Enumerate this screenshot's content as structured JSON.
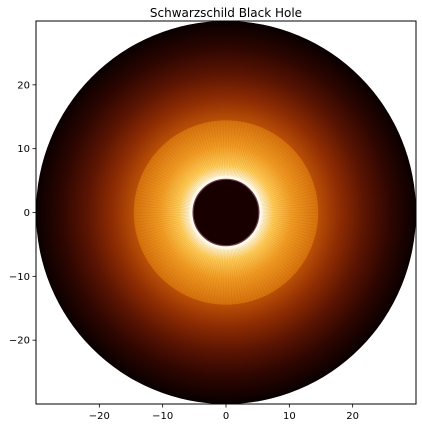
{
  "chart_data": {
    "type": "heatmap",
    "title": "Schwarzschild Black Hole",
    "xlabel": "",
    "ylabel": "",
    "xlim": [
      -30,
      30
    ],
    "ylim": [
      -30,
      30
    ],
    "xticks": [
      -20,
      -10,
      0,
      10,
      20
    ],
    "yticks": [
      -20,
      -10,
      0,
      10,
      20
    ],
    "xtick_labels": [
      "−20",
      "−10",
      "0",
      "10",
      "20"
    ],
    "ytick_labels": [
      "−20",
      "−10",
      "0",
      "10",
      "20"
    ],
    "grid": false,
    "legend": false,
    "colormap": "afmhot",
    "disk_outer_radius": 30,
    "shadow_radius": 5.2,
    "bright_ring_outer_radius": 14.5,
    "intensity_profile": [
      {
        "r": 5.2,
        "color": "#ffffff"
      },
      {
        "r": 5.8,
        "color": "#fff5d6"
      },
      {
        "r": 7.5,
        "color": "#ffcc55"
      },
      {
        "r": 10.5,
        "color": "#f09a22"
      },
      {
        "r": 14.5,
        "color": "#d4700c"
      },
      {
        "r": 14.6,
        "color": "#b84e06"
      },
      {
        "r": 18,
        "color": "#8e2c03"
      },
      {
        "r": 22,
        "color": "#5a1402"
      },
      {
        "r": 26,
        "color": "#2e0601"
      },
      {
        "r": 30,
        "color": "#0a0000"
      }
    ],
    "shadow_color": "#180000",
    "shadow_edge_color": "#6a3a4a"
  }
}
